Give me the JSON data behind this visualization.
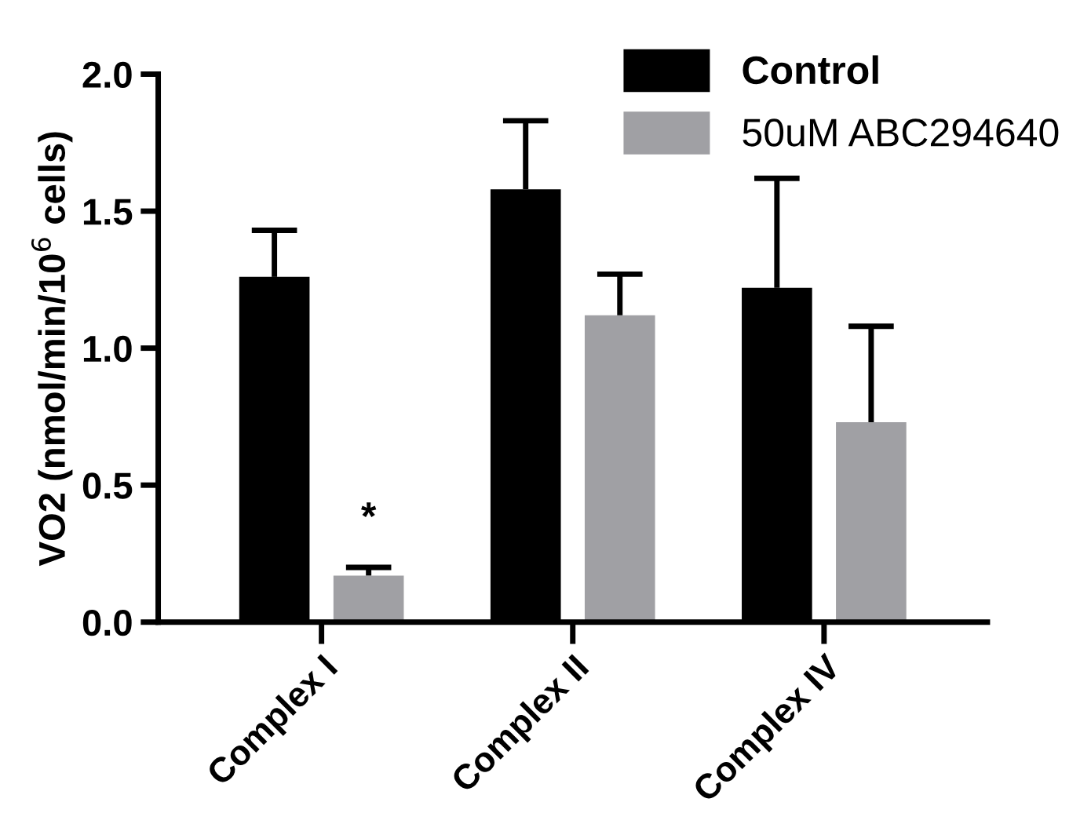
{
  "chart_data": {
    "type": "bar",
    "ylabel": "VO2 (nmol/min/10$^{6}$ cells)",
    "categories": [
      "Complex I",
      "Complex II",
      "Complex IV"
    ],
    "series": [
      {
        "name": "Control",
        "color": "#000000",
        "values": [
          1.26,
          1.58,
          1.22
        ],
        "errors": [
          [
            1.26,
            1.43
          ],
          [
            1.58,
            1.83
          ],
          [
            1.22,
            1.62
          ]
        ]
      },
      {
        "name": "50uM ABC294640",
        "color": "#a0a0a4",
        "values": [
          0.17,
          1.12,
          0.73
        ],
        "errors": [
          [
            0.17,
            0.2
          ],
          [
            1.12,
            1.27
          ],
          [
            0.73,
            1.08
          ]
        ]
      }
    ],
    "ylim": [
      0,
      2.0
    ],
    "yticks": [
      {
        "value": 0,
        "label": "0.0"
      },
      {
        "value": 0.5,
        "label": "0.5"
      },
      {
        "value": 1.0,
        "label": "1.0"
      },
      {
        "value": 1.5,
        "label": "1.5"
      },
      {
        "value": 2.0,
        "label": "2.0"
      }
    ],
    "annotations": [
      "*"
    ],
    "legend": "top right",
    "grid": false
  }
}
